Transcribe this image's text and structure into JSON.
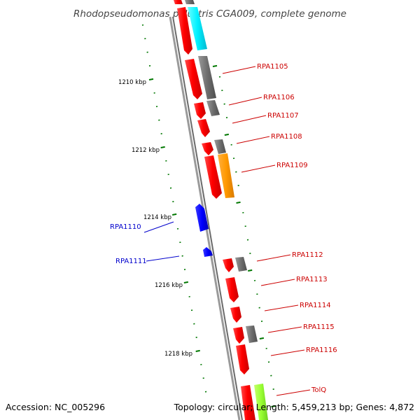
{
  "title": "Rhodopseudomonas palustris CGA009, complete genome",
  "accession": "Accession: NC_005296",
  "summary": "Topology: circular; Length: 5,459,213 bp; Genes: 4,872",
  "colors": {
    "backbone": "#8c8c8c",
    "forward_cds": "#ff0000",
    "reverse_cds": "#0000ff",
    "rna_or_other": "#808080",
    "cyan_feature": "#00ffff",
    "orange_feature": "#ff9900",
    "lime_feature": "#99ff33",
    "tick": "#007700"
  },
  "ruler_labels": [
    "1210 kbp",
    "1212 kbp",
    "1214 kbp",
    "1216 kbp",
    "1218 kbp"
  ],
  "gene_labels": [
    {
      "text": "RPA1105",
      "color": "#cc0000"
    },
    {
      "text": "RPA1106",
      "color": "#cc0000"
    },
    {
      "text": "RPA1107",
      "color": "#cc0000"
    },
    {
      "text": "RPA1108",
      "color": "#cc0000"
    },
    {
      "text": "RPA1109",
      "color": "#cc0000"
    },
    {
      "text": "RPA1110",
      "color": "#0000cc"
    },
    {
      "text": "RPA1111",
      "color": "#0000cc"
    },
    {
      "text": "RPA1112",
      "color": "#cc0000"
    },
    {
      "text": "RPA1113",
      "color": "#cc0000"
    },
    {
      "text": "RPA1114",
      "color": "#cc0000"
    },
    {
      "text": "RPA1115",
      "color": "#cc0000"
    },
    {
      "text": "RPA1116",
      "color": "#cc0000"
    },
    {
      "text": "TolQ",
      "color": "#cc0000"
    }
  ]
}
